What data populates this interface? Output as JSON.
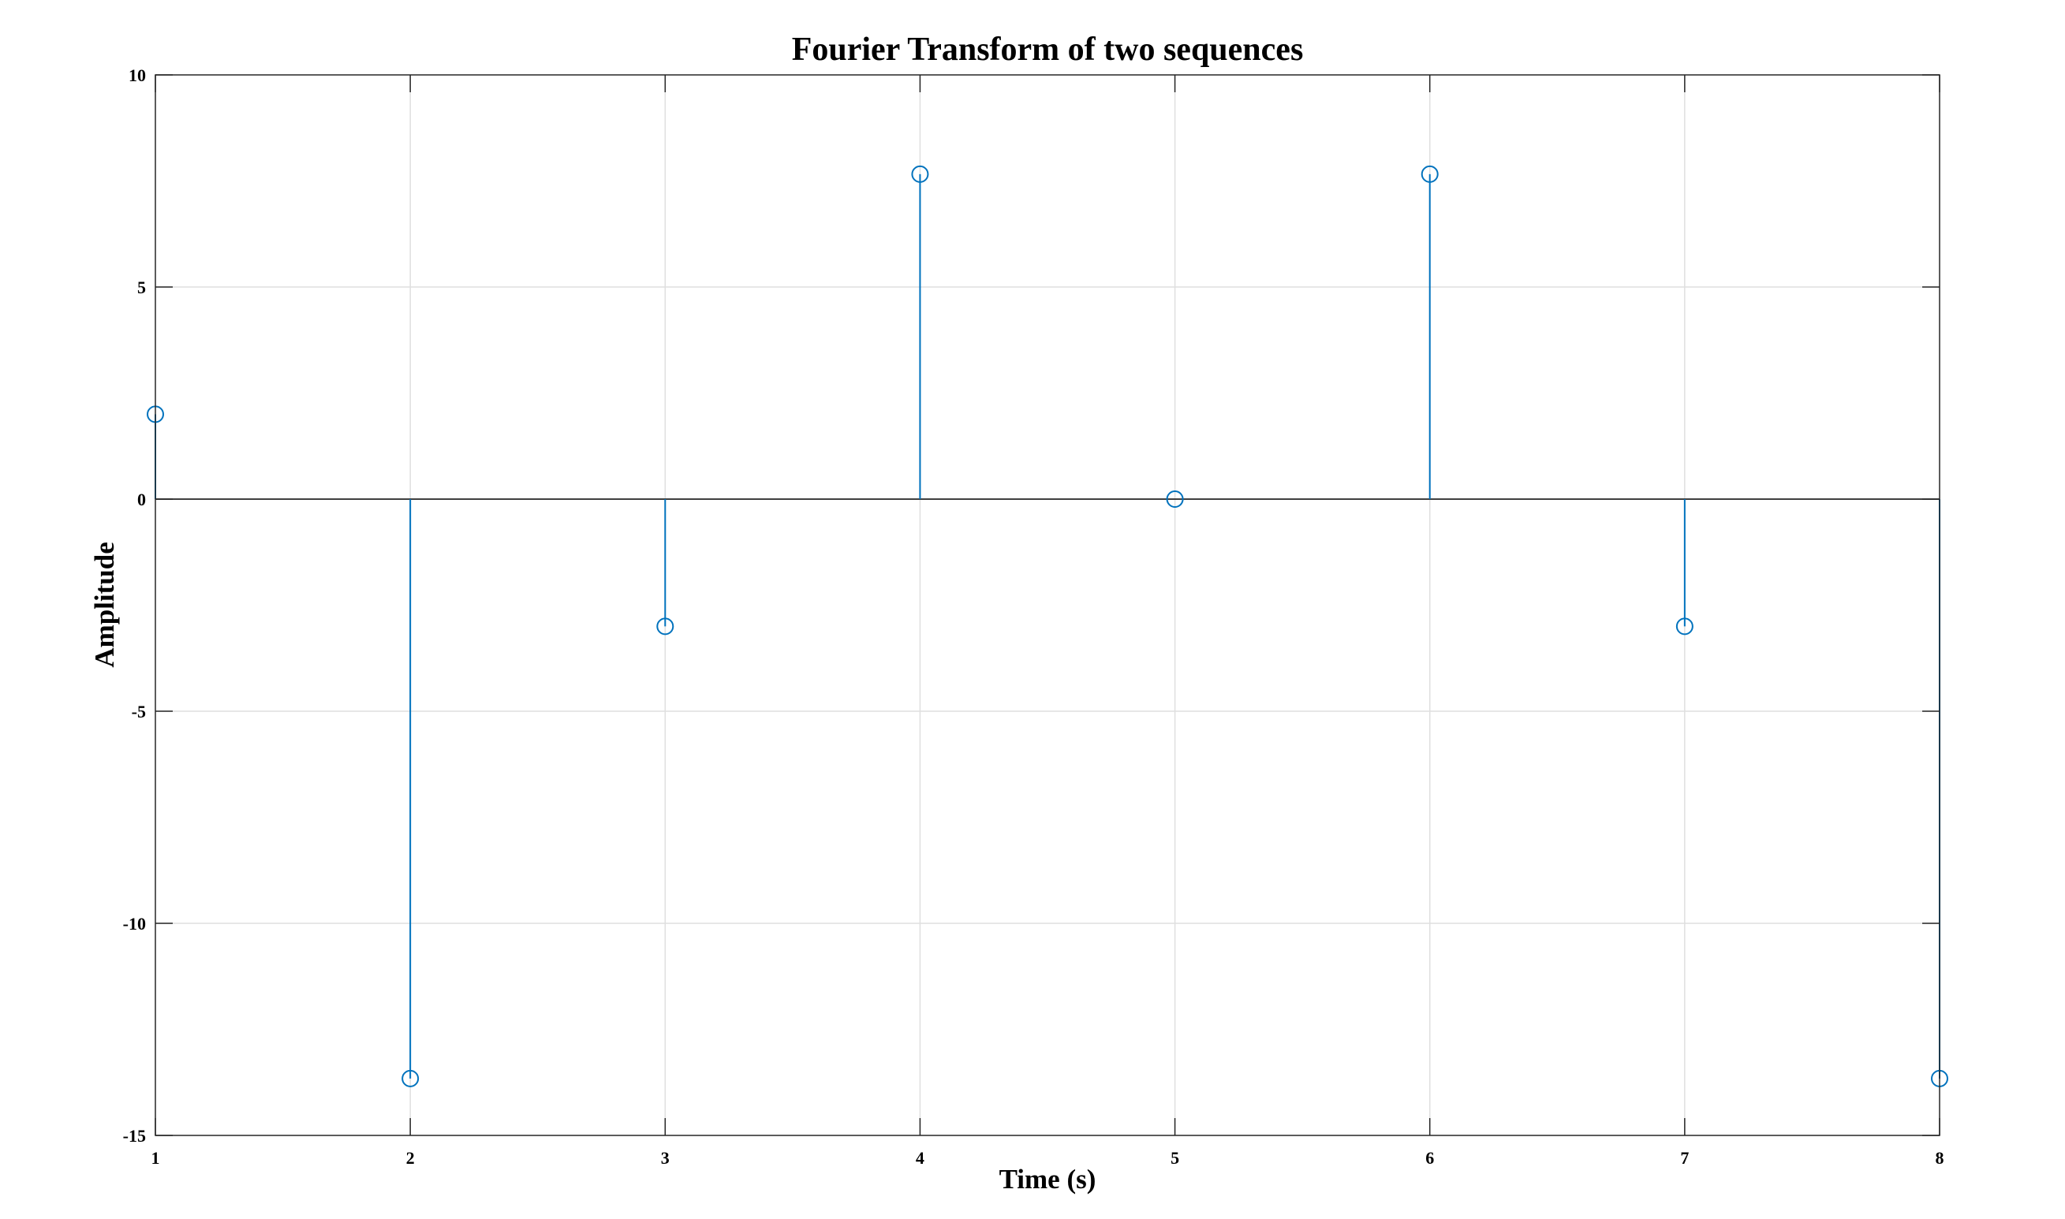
{
  "chart_data": {
    "type": "stem",
    "title": "Fourier Transform of two sequences",
    "xlabel": "Time (s)",
    "ylabel": "Amplitude",
    "x": [
      1,
      2,
      3,
      4,
      5,
      6,
      7,
      8
    ],
    "values": [
      2,
      -13.66,
      -3,
      7.66,
      0,
      7.66,
      -3,
      -13.66
    ],
    "xlim": [
      1,
      8
    ],
    "ylim": [
      -15,
      10
    ],
    "xticks": [
      "1",
      "2",
      "3",
      "4",
      "5",
      "6",
      "7",
      "8"
    ],
    "yticks": [
      "-15",
      "-10",
      "-5",
      "0",
      "5",
      "10"
    ],
    "grid": true,
    "legend": "none",
    "marker": "circle",
    "colors": {
      "series": "#0072BD",
      "grid": "#DFDFDF",
      "axes": "#262626",
      "baseline": "#262626"
    }
  }
}
